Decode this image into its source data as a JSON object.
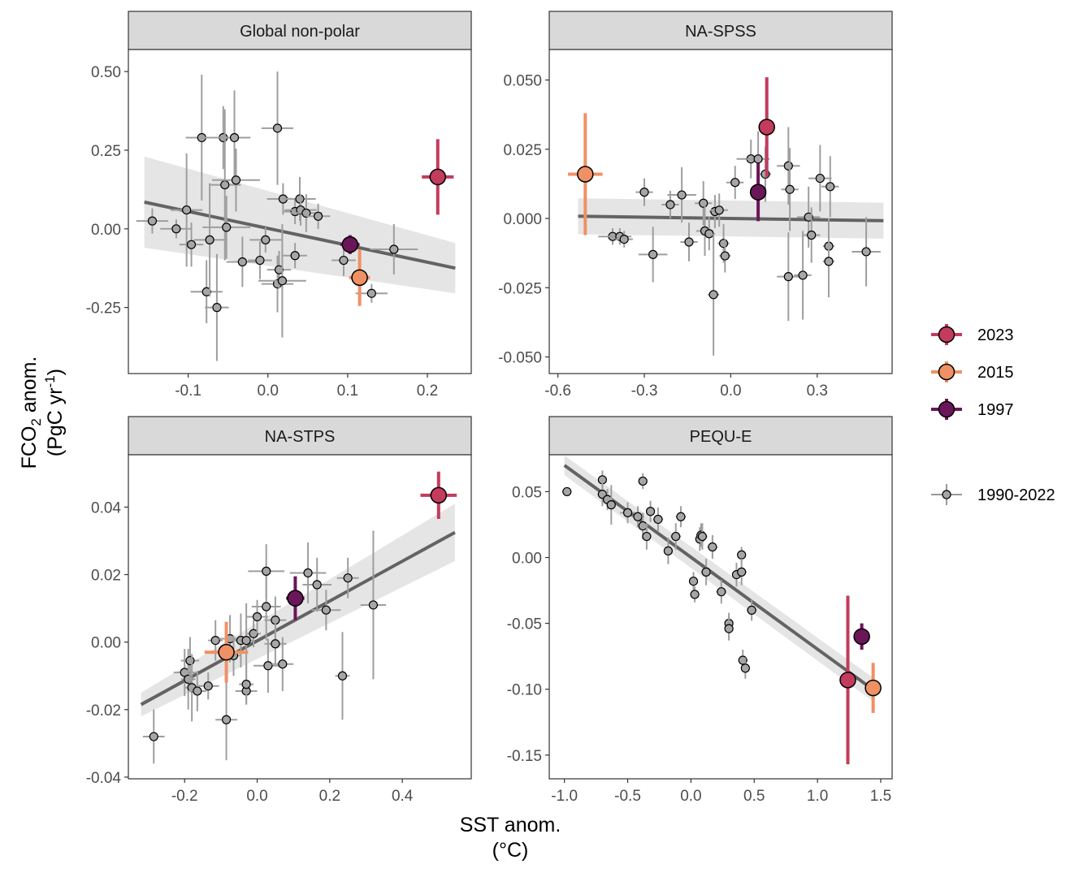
{
  "figure": {
    "xlabel_line1": "SST anom.",
    "xlabel_line2": "(°C)",
    "ylabel_line1_main": "FCO",
    "ylabel_line1_sub": "2",
    "ylabel_line1_rest": " anom.",
    "ylabel_line2_main": "(PgC yr",
    "ylabel_line2_sup": "-1",
    "ylabel_line2_rest": ")"
  },
  "legend": {
    "items": [
      {
        "label": "2023",
        "color": "#c33b5d"
      },
      {
        "label": "2015",
        "color": "#ef9164"
      },
      {
        "label": "1997",
        "color": "#6b1659"
      },
      {
        "label": "1990-2022",
        "color": "#999999"
      }
    ]
  },
  "chart_data": [
    {
      "type": "scatter",
      "title": "Global non-polar",
      "xlim": [
        -0.175,
        0.255
      ],
      "ylim": [
        -0.46,
        0.57
      ],
      "x_ticks": [
        -0.1,
        0.0,
        0.1,
        0.2
      ],
      "x_tick_labels": [
        "-0.1",
        "0.0",
        "0.1",
        "0.2"
      ],
      "y_ticks": [
        -0.25,
        0.0,
        0.25,
        0.5
      ],
      "y_tick_labels": [
        "-0.25",
        "0.00",
        "0.25",
        "0.50"
      ],
      "regression": {
        "x0": -0.155,
        "y0": 0.085,
        "x1": 0.235,
        "y1": -0.125,
        "band0": 0.145,
        "band1": 0.08
      },
      "points": [
        {
          "x": -0.145,
          "y": 0.025,
          "xe": 0.02,
          "ye": 0.04
        },
        {
          "x": -0.115,
          "y": 0.0,
          "xe": 0.02,
          "ye": 0.03
        },
        {
          "x": -0.102,
          "y": 0.06,
          "xe": 0.02,
          "ye": 0.18
        },
        {
          "x": -0.096,
          "y": -0.05,
          "xe": 0.015,
          "ye": 0.07
        },
        {
          "x": -0.083,
          "y": 0.29,
          "xe": 0.02,
          "ye": 0.2
        },
        {
          "x": -0.077,
          "y": -0.2,
          "xe": 0.02,
          "ye": 0.1
        },
        {
          "x": -0.073,
          "y": -0.035,
          "xe": 0.02,
          "ye": 0.18
        },
        {
          "x": -0.064,
          "y": -0.25,
          "xe": 0.015,
          "ye": 0.17
        },
        {
          "x": -0.056,
          "y": 0.29,
          "xe": 0.03,
          "ye": 0.1
        },
        {
          "x": -0.054,
          "y": 0.14,
          "xe": 0.02,
          "ye": 0.24
        },
        {
          "x": -0.052,
          "y": 0.005,
          "xe": 0.03,
          "ye": 0.1
        },
        {
          "x": -0.042,
          "y": 0.29,
          "xe": 0.02,
          "ye": 0.15
        },
        {
          "x": -0.04,
          "y": 0.155,
          "xe": 0.03,
          "ye": 0.1
        },
        {
          "x": -0.032,
          "y": -0.105,
          "xe": 0.02,
          "ye": 0.08
        },
        {
          "x": -0.01,
          "y": -0.1,
          "xe": 0.015,
          "ye": 0.06
        },
        {
          "x": -0.003,
          "y": -0.035,
          "xe": 0.02,
          "ye": 0.04
        },
        {
          "x": 0.012,
          "y": 0.32,
          "xe": 0.02,
          "ye": 0.18
        },
        {
          "x": 0.012,
          "y": -0.175,
          "xe": 0.02,
          "ye": 0.09
        },
        {
          "x": 0.014,
          "y": -0.13,
          "xe": 0.015,
          "ye": 0.06
        },
        {
          "x": 0.018,
          "y": -0.165,
          "xe": 0.03,
          "ye": 0.18
        },
        {
          "x": 0.019,
          "y": 0.095,
          "xe": 0.02,
          "ye": 0.05
        },
        {
          "x": 0.034,
          "y": 0.055,
          "xe": 0.015,
          "ye": 0.04
        },
        {
          "x": 0.034,
          "y": -0.085,
          "xe": 0.015,
          "ye": 0.04
        },
        {
          "x": 0.04,
          "y": 0.095,
          "xe": 0.02,
          "ye": 0.07
        },
        {
          "x": 0.041,
          "y": 0.06,
          "xe": 0.02,
          "ye": 0.05
        },
        {
          "x": 0.048,
          "y": 0.05,
          "xe": 0.02,
          "ye": 0.06
        },
        {
          "x": 0.063,
          "y": 0.04,
          "xe": 0.015,
          "ye": 0.04
        },
        {
          "x": 0.095,
          "y": -0.1,
          "xe": 0.015,
          "ye": 0.05
        },
        {
          "x": 0.13,
          "y": -0.205,
          "xe": 0.02,
          "ye": 0.03
        },
        {
          "x": 0.158,
          "y": -0.065,
          "xe": 0.03,
          "ye": 0.08
        }
      ],
      "highlights": [
        {
          "label": "1997",
          "x": 0.103,
          "y": -0.05,
          "xe": 0.012,
          "ye": 0.03
        },
        {
          "label": "2015",
          "x": 0.115,
          "y": -0.155,
          "xe": 0.013,
          "ye": 0.09
        },
        {
          "label": "2023",
          "x": 0.213,
          "y": 0.165,
          "xe": 0.02,
          "ye": 0.12
        }
      ]
    },
    {
      "type": "scatter",
      "title": "NA-SPSS",
      "xlim": [
        -0.63,
        0.56
      ],
      "ylim": [
        -0.056,
        0.061
      ],
      "x_ticks": [
        -0.6,
        -0.3,
        0.0,
        0.3
      ],
      "x_tick_labels": [
        "-0.6",
        "-0.3",
        "0.0",
        "0.3"
      ],
      "y_ticks": [
        -0.05,
        -0.025,
        0.0,
        0.025,
        0.05
      ],
      "y_tick_labels": [
        "-0.050",
        "-0.025",
        "0.000",
        "0.025",
        "0.050"
      ],
      "regression": {
        "x0": -0.53,
        "y0": 0.0008,
        "x1": 0.53,
        "y1": -0.0008,
        "band0": 0.0065,
        "band1": 0.0065
      },
      "points": [
        {
          "x": -0.41,
          "y": -0.0065,
          "xe": 0.05,
          "ye": 0.003
        },
        {
          "x": -0.385,
          "y": -0.0065,
          "xe": 0.04,
          "ye": 0.003
        },
        {
          "x": -0.37,
          "y": -0.0075,
          "xe": 0.03,
          "ye": 0.003
        },
        {
          "x": -0.3,
          "y": 0.0095,
          "xe": 0.03,
          "ye": 0.005
        },
        {
          "x": -0.27,
          "y": -0.013,
          "xe": 0.05,
          "ye": 0.01
        },
        {
          "x": -0.21,
          "y": 0.005,
          "xe": 0.03,
          "ye": 0.005
        },
        {
          "x": -0.17,
          "y": 0.0085,
          "xe": 0.05,
          "ye": 0.01
        },
        {
          "x": -0.145,
          "y": -0.0085,
          "xe": 0.03,
          "ye": 0.007
        },
        {
          "x": -0.095,
          "y": 0.0055,
          "xe": 0.03,
          "ye": 0.008
        },
        {
          "x": -0.09,
          "y": -0.0045,
          "xe": 0.03,
          "ye": 0.009
        },
        {
          "x": -0.075,
          "y": -0.0055,
          "xe": 0.02,
          "ye": 0.006
        },
        {
          "x": -0.06,
          "y": -0.0275,
          "xe": 0.02,
          "ye": 0.022
        },
        {
          "x": -0.055,
          "y": 0.0025,
          "xe": 0.02,
          "ye": 0.006
        },
        {
          "x": -0.04,
          "y": 0.003,
          "xe": 0.03,
          "ye": 0.006
        },
        {
          "x": -0.025,
          "y": -0.009,
          "xe": 0.02,
          "ye": 0.007
        },
        {
          "x": -0.02,
          "y": -0.0135,
          "xe": 0.02,
          "ye": 0.006
        },
        {
          "x": 0.015,
          "y": 0.013,
          "xe": 0.03,
          "ye": 0.006
        },
        {
          "x": 0.07,
          "y": 0.0215,
          "xe": 0.05,
          "ye": 0.007
        },
        {
          "x": 0.095,
          "y": 0.0215,
          "xe": 0.04,
          "ye": 0.01
        },
        {
          "x": 0.12,
          "y": 0.016,
          "xe": 0.02,
          "ye": 0.01
        },
        {
          "x": 0.2,
          "y": 0.019,
          "xe": 0.04,
          "ye": 0.014
        },
        {
          "x": 0.205,
          "y": 0.0105,
          "xe": 0.03,
          "ye": 0.015
        },
        {
          "x": 0.2,
          "y": -0.021,
          "xe": 0.04,
          "ye": 0.016
        },
        {
          "x": 0.25,
          "y": -0.0205,
          "xe": 0.03,
          "ye": 0.016
        },
        {
          "x": 0.27,
          "y": 0.0005,
          "xe": 0.04,
          "ye": 0.011
        },
        {
          "x": 0.28,
          "y": -0.006,
          "xe": 0.03,
          "ye": 0.01
        },
        {
          "x": 0.31,
          "y": 0.0145,
          "xe": 0.04,
          "ye": 0.012
        },
        {
          "x": 0.34,
          "y": -0.01,
          "xe": 0.02,
          "ye": 0.01
        },
        {
          "x": 0.345,
          "y": 0.0115,
          "xe": 0.03,
          "ye": 0.011
        },
        {
          "x": 0.34,
          "y": -0.0155,
          "xe": 0.02,
          "ye": 0.013
        },
        {
          "x": 0.47,
          "y": -0.012,
          "xe": 0.05,
          "ye": 0.0125
        }
      ],
      "highlights": [
        {
          "label": "1997",
          "x": 0.095,
          "y": 0.0095,
          "xe": 0.013,
          "ye": 0.0105
        },
        {
          "label": "2015",
          "x": -0.505,
          "y": 0.016,
          "xe": 0.06,
          "ye": 0.022
        },
        {
          "label": "2023",
          "x": 0.125,
          "y": 0.033,
          "xe": 0.013,
          "ye": 0.018
        }
      ]
    },
    {
      "type": "scatter",
      "title": "NA-STPS",
      "xlim": [
        -0.355,
        0.59
      ],
      "ylim": [
        -0.0405,
        0.0555
      ],
      "x_ticks": [
        -0.2,
        0.0,
        0.2,
        0.4
      ],
      "x_tick_labels": [
        "-0.2",
        "0.0",
        "0.2",
        "0.4"
      ],
      "y_ticks": [
        -0.04,
        -0.02,
        0.0,
        0.02,
        0.04
      ],
      "y_tick_labels": [
        "-0.04",
        "-0.02",
        "0.00",
        "0.02",
        "0.04"
      ],
      "regression": {
        "x0": -0.32,
        "y0": -0.0185,
        "x1": 0.545,
        "y1": 0.0325,
        "band0": 0.0035,
        "band1": 0.0085
      },
      "points": [
        {
          "x": -0.285,
          "y": -0.028,
          "xe": 0.03,
          "ye": 0.008
        },
        {
          "x": -0.2,
          "y": -0.009,
          "xe": 0.03,
          "ye": 0.007
        },
        {
          "x": -0.19,
          "y": -0.011,
          "xe": 0.02,
          "ye": 0.009
        },
        {
          "x": -0.185,
          "y": -0.0055,
          "xe": 0.025,
          "ye": 0.007
        },
        {
          "x": -0.18,
          "y": -0.0135,
          "xe": 0.02,
          "ye": 0.01
        },
        {
          "x": -0.165,
          "y": -0.0145,
          "xe": 0.025,
          "ye": 0.006
        },
        {
          "x": -0.135,
          "y": -0.013,
          "xe": 0.03,
          "ye": 0.004
        },
        {
          "x": -0.115,
          "y": 0.0005,
          "xe": 0.02,
          "ye": 0.006
        },
        {
          "x": -0.085,
          "y": -0.023,
          "xe": 0.03,
          "ye": 0.012
        },
        {
          "x": -0.075,
          "y": 0.001,
          "xe": 0.03,
          "ye": 0.007
        },
        {
          "x": -0.065,
          "y": -0.004,
          "xe": 0.02,
          "ye": 0.006
        },
        {
          "x": -0.045,
          "y": 0.0005,
          "xe": 0.02,
          "ye": 0.008
        },
        {
          "x": -0.03,
          "y": -0.0145,
          "xe": 0.03,
          "ye": 0.004
        },
        {
          "x": -0.03,
          "y": -0.0125,
          "xe": 0.02,
          "ye": 0.006
        },
        {
          "x": -0.03,
          "y": 0.0005,
          "xe": 0.02,
          "ye": 0.011
        },
        {
          "x": -0.01,
          "y": 0.0025,
          "xe": 0.02,
          "ye": 0.004
        },
        {
          "x": 0.0,
          "y": 0.0075,
          "xe": 0.03,
          "ye": 0.005
        },
        {
          "x": 0.025,
          "y": 0.0105,
          "xe": 0.04,
          "ye": 0.01
        },
        {
          "x": 0.025,
          "y": 0.021,
          "xe": 0.05,
          "ye": 0.008
        },
        {
          "x": 0.03,
          "y": -0.007,
          "xe": 0.04,
          "ye": 0.008
        },
        {
          "x": 0.05,
          "y": 0.0065,
          "xe": 0.03,
          "ye": 0.007
        },
        {
          "x": 0.05,
          "y": -0.0005,
          "xe": 0.03,
          "ye": 0.006
        },
        {
          "x": 0.07,
          "y": -0.0065,
          "xe": 0.03,
          "ye": 0.008
        },
        {
          "x": 0.14,
          "y": 0.0205,
          "xe": 0.05,
          "ye": 0.009
        },
        {
          "x": 0.165,
          "y": 0.017,
          "xe": 0.04,
          "ye": 0.008
        },
        {
          "x": 0.19,
          "y": 0.0095,
          "xe": 0.04,
          "ye": 0.006
        },
        {
          "x": 0.235,
          "y": -0.01,
          "xe": 0.02,
          "ye": 0.013
        },
        {
          "x": 0.25,
          "y": 0.019,
          "xe": 0.03,
          "ye": 0.006
        },
        {
          "x": 0.32,
          "y": 0.011,
          "xe": 0.035,
          "ye": 0.022
        }
      ],
      "highlights": [
        {
          "label": "1997",
          "x": 0.105,
          "y": 0.013,
          "xe": 0.025,
          "ye": 0.0065
        },
        {
          "label": "2015",
          "x": -0.085,
          "y": -0.003,
          "xe": 0.06,
          "ye": 0.009
        },
        {
          "label": "2023",
          "x": 0.5,
          "y": 0.0435,
          "xe": 0.05,
          "ye": 0.007
        }
      ]
    },
    {
      "type": "scatter",
      "title": "PEQU-E",
      "xlim": [
        -1.12,
        1.59
      ],
      "ylim": [
        -0.168,
        0.078
      ],
      "x_ticks": [
        -1.0,
        -0.5,
        0.0,
        0.5,
        1.0,
        1.5
      ],
      "x_tick_labels": [
        "-1.0",
        "-0.5",
        "0.0",
        "0.5",
        "1.0",
        "1.5"
      ],
      "y_ticks": [
        -0.15,
        -0.1,
        -0.05,
        0.0,
        0.05
      ],
      "y_tick_labels": [
        "-0.15",
        "-0.10",
        "-0.05",
        "0.00",
        "0.05"
      ],
      "regression": {
        "x0": -1.0,
        "y0": 0.07,
        "x1": 1.45,
        "y1": -0.101,
        "band0": 0.0075,
        "band1": 0.009
      },
      "points": [
        {
          "x": -0.98,
          "y": 0.05,
          "xe": 0.02,
          "ye": 0.003
        },
        {
          "x": -0.7,
          "y": 0.059,
          "xe": 0.03,
          "ye": 0.007
        },
        {
          "x": -0.7,
          "y": 0.048,
          "xe": 0.04,
          "ye": 0.009
        },
        {
          "x": -0.66,
          "y": 0.044,
          "xe": 0.04,
          "ye": 0.008
        },
        {
          "x": -0.63,
          "y": 0.04,
          "xe": 0.03,
          "ye": 0.015
        },
        {
          "x": -0.5,
          "y": 0.034,
          "xe": 0.06,
          "ye": 0.008
        },
        {
          "x": -0.42,
          "y": 0.031,
          "xe": 0.05,
          "ye": 0.008
        },
        {
          "x": -0.38,
          "y": 0.058,
          "xe": 0.03,
          "ye": 0.006
        },
        {
          "x": -0.38,
          "y": 0.024,
          "xe": 0.04,
          "ye": 0.01
        },
        {
          "x": -0.35,
          "y": 0.016,
          "xe": 0.03,
          "ye": 0.01
        },
        {
          "x": -0.32,
          "y": 0.035,
          "xe": 0.03,
          "ye": 0.008
        },
        {
          "x": -0.26,
          "y": 0.029,
          "xe": 0.04,
          "ye": 0.009
        },
        {
          "x": -0.18,
          "y": 0.005,
          "xe": 0.03,
          "ye": 0.01
        },
        {
          "x": -0.12,
          "y": 0.016,
          "xe": 0.04,
          "ye": 0.01
        },
        {
          "x": -0.08,
          "y": 0.031,
          "xe": 0.04,
          "ye": 0.008
        },
        {
          "x": 0.02,
          "y": -0.018,
          "xe": 0.03,
          "ye": 0.007
        },
        {
          "x": 0.03,
          "y": -0.028,
          "xe": 0.03,
          "ye": 0.006
        },
        {
          "x": 0.07,
          "y": 0.014,
          "xe": 0.03,
          "ye": 0.009
        },
        {
          "x": 0.08,
          "y": 0.017,
          "xe": 0.04,
          "ye": 0.009
        },
        {
          "x": 0.09,
          "y": 0.016,
          "xe": 0.04,
          "ye": 0.01
        },
        {
          "x": 0.12,
          "y": -0.011,
          "xe": 0.04,
          "ye": 0.01
        },
        {
          "x": 0.17,
          "y": 0.008,
          "xe": 0.04,
          "ye": 0.009
        },
        {
          "x": 0.24,
          "y": -0.026,
          "xe": 0.04,
          "ye": 0.009
        },
        {
          "x": 0.3,
          "y": -0.05,
          "xe": 0.03,
          "ye": 0.008
        },
        {
          "x": 0.3,
          "y": -0.054,
          "xe": 0.03,
          "ye": 0.009
        },
        {
          "x": 0.36,
          "y": -0.013,
          "xe": 0.03,
          "ye": 0.009
        },
        {
          "x": 0.4,
          "y": 0.002,
          "xe": 0.03,
          "ye": 0.006
        },
        {
          "x": 0.4,
          "y": -0.011,
          "xe": 0.04,
          "ye": 0.01
        },
        {
          "x": 0.41,
          "y": -0.078,
          "xe": 0.03,
          "ye": 0.008
        },
        {
          "x": 0.43,
          "y": -0.084,
          "xe": 0.03,
          "ye": 0.008
        },
        {
          "x": 0.48,
          "y": -0.04,
          "xe": 0.04,
          "ye": 0.008
        }
      ],
      "highlights": [
        {
          "label": "1997",
          "x": 1.35,
          "y": -0.06,
          "xe": 0.03,
          "ye": 0.01
        },
        {
          "label": "2015",
          "x": 1.44,
          "y": -0.099,
          "xe": 0.03,
          "ye": 0.019
        },
        {
          "label": "2023",
          "x": 1.24,
          "y": -0.093,
          "xe": 0.03,
          "ye": 0.064
        }
      ]
    }
  ]
}
